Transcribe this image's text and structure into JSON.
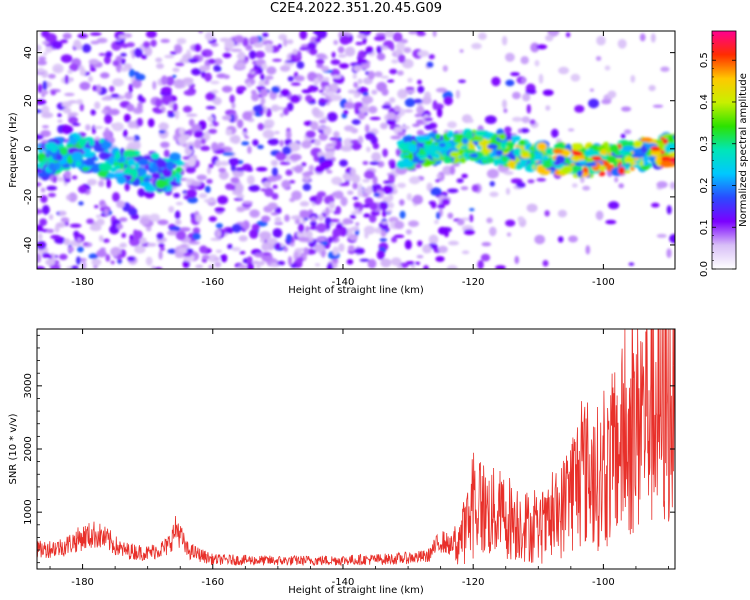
{
  "title": "C2E4.2022.351.20.45.G09",
  "chart_data": [
    {
      "type": "heatmap",
      "xlabel": "Height of straight line (km)",
      "ylabel": "Frequency (Hz)",
      "xlim": [
        -187,
        -89
      ],
      "ylim": [
        -50,
        49
      ],
      "xticks": [
        -180,
        -160,
        -140,
        -120,
        -100
      ],
      "xtick_labels": [
        "-180",
        "-160",
        "-140",
        "-120",
        "-100"
      ],
      "yticks": [
        -40,
        -20,
        0,
        20,
        40
      ],
      "ytick_labels": [
        "-40",
        "-20",
        "0",
        "20",
        "40"
      ],
      "colorbar": {
        "label": "Normalized spectral amplitude",
        "range": [
          0,
          0.57
        ],
        "ticks": [
          0,
          0.1,
          0.2,
          0.3,
          0.4,
          0.5
        ],
        "tick_labels": [
          "0.0",
          "0.1",
          "0.2",
          "0.3",
          "0.4",
          "0.5"
        ],
        "colormap": [
          "#ffffff",
          "#d8bff7",
          "#7b00ff",
          "#2a4bff",
          "#00c8ff",
          "#00e6b8",
          "#2de200",
          "#c8f000",
          "#ffc800",
          "#ff2d00",
          "#ff0090"
        ]
      },
      "features": [
        {
          "x_range": [
            -187,
            -165
          ],
          "y_center": -5,
          "description": "weak band"
        },
        {
          "x_range": [
            -131,
            -89
          ],
          "y_center": -2,
          "description": "strong band"
        }
      ]
    },
    {
      "type": "line",
      "xlabel": "Height of straight line (km)",
      "ylabel": "SNR (10 * v/v)",
      "xlim": [
        -187,
        -89
      ],
      "ylim": [
        100,
        3900
      ],
      "xticks": [
        -180,
        -160,
        -140,
        -120,
        -100
      ],
      "xtick_labels": [
        "-180",
        "-160",
        "-140",
        "-120",
        "-100"
      ],
      "yticks": [
        1000,
        2000,
        3000
      ],
      "ytick_labels": [
        "1000",
        "2000",
        "3000"
      ],
      "color": "#e8302a",
      "envelope": {
        "x": [
          -187,
          -183,
          -180,
          -178,
          -176,
          -174,
          -170,
          -167,
          -165.5,
          -164,
          -160,
          -150,
          -140,
          -132,
          -127,
          -125,
          -123,
          -121,
          -119.5,
          -118,
          -115,
          -112,
          -110,
          -107,
          -105,
          -103,
          -100,
          -98,
          -95,
          -93,
          -91,
          -89
        ],
        "y": [
          400,
          450,
          600,
          650,
          550,
          400,
          350,
          450,
          750,
          400,
          250,
          230,
          240,
          260,
          300,
          550,
          450,
          750,
          1200,
          1000,
          950,
          800,
          650,
          900,
          1350,
          1650,
          1500,
          2000,
          2300,
          2800,
          2500,
          2900
        ]
      }
    }
  ]
}
